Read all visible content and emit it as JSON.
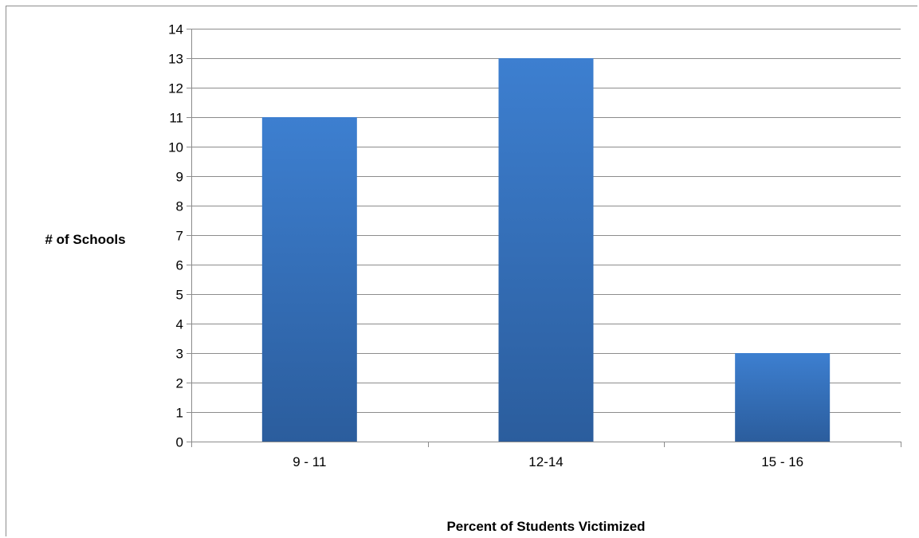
{
  "chart_data": {
    "type": "bar",
    "categories": [
      "9 - 11",
      "12-14",
      "15 - 16"
    ],
    "values": [
      11,
      13,
      3
    ],
    "title": "",
    "xlabel": "Percent of Students Victimized",
    "ylabel": "# of Schools",
    "ylim": [
      0,
      14
    ],
    "y_ticks": [
      0,
      1,
      2,
      3,
      4,
      5,
      6,
      7,
      8,
      9,
      10,
      11,
      12,
      13,
      14
    ],
    "grid": true,
    "legend": "none",
    "colors": {
      "bar_top": "#3d7fd0",
      "bar_bottom": "#2b5d9d",
      "gridline": "#8c8c8c",
      "axis": "#8c8c8c"
    }
  }
}
